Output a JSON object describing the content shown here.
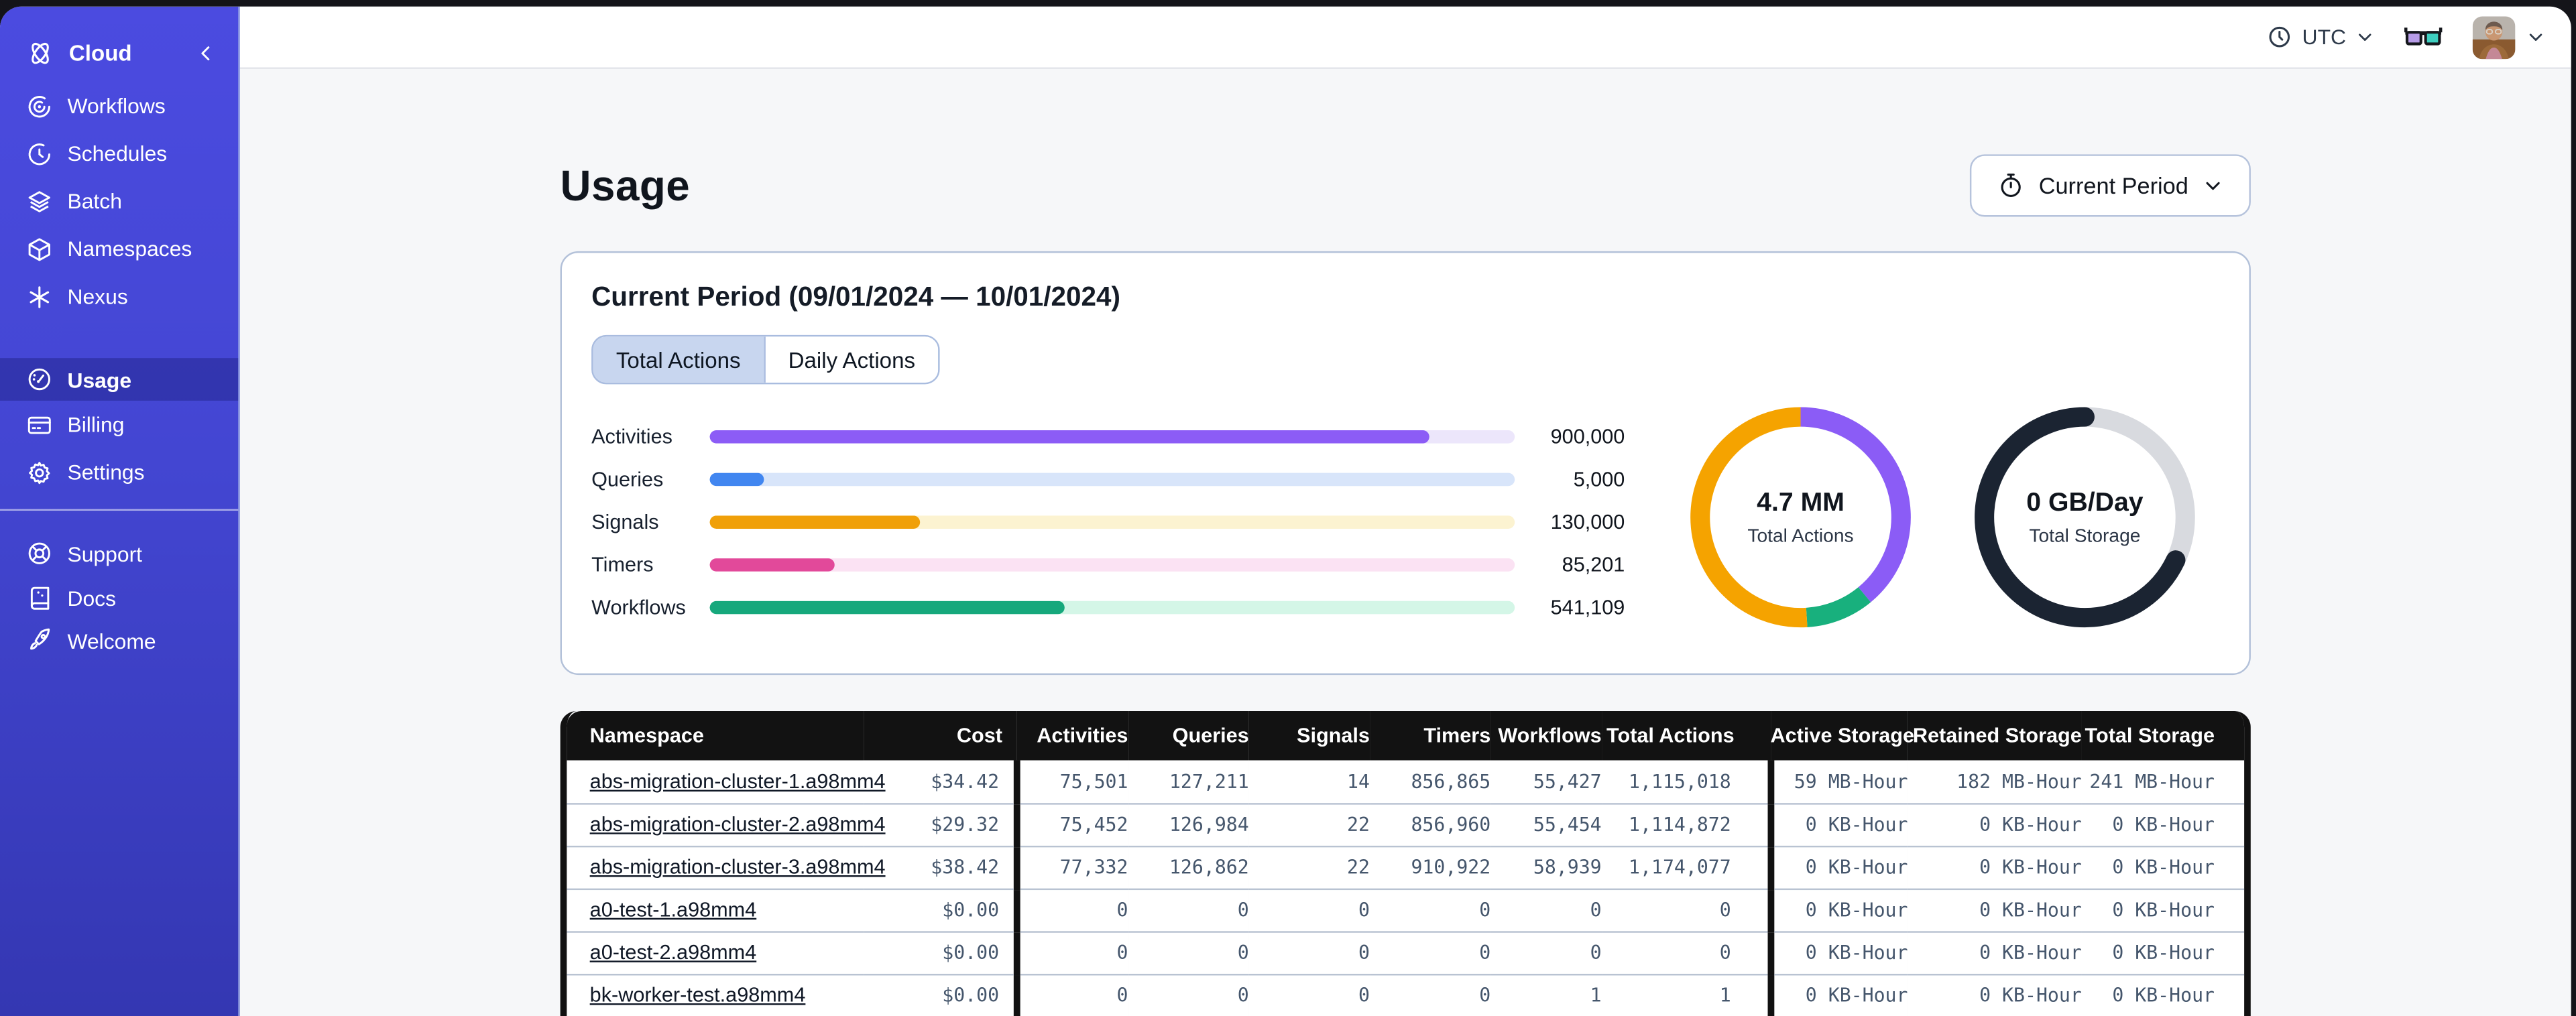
{
  "topbar": {
    "timezone": "UTC",
    "glasses_icon": "nerd-glasses-feedback",
    "avatar": "user-avatar-photo"
  },
  "sidebar": {
    "logo_label": "Cloud",
    "items": [
      {
        "label": "Workflows"
      },
      {
        "label": "Schedules"
      },
      {
        "label": "Batch"
      },
      {
        "label": "Namespaces"
      },
      {
        "label": "Nexus"
      }
    ],
    "account_items": [
      {
        "label": "Usage",
        "selected": true
      },
      {
        "label": "Billing",
        "selected": false
      },
      {
        "label": "Settings",
        "selected": false
      }
    ],
    "footer_items": [
      {
        "label": "Support"
      },
      {
        "label": "Docs"
      },
      {
        "label": "Welcome"
      }
    ]
  },
  "page": {
    "title": "Usage",
    "period_button_label": "Current Period"
  },
  "card": {
    "title": "Current Period (09/01/2024 — 10/01/2024)",
    "tabs": [
      {
        "label": "Total Actions",
        "selected": true
      },
      {
        "label": "Daily Actions",
        "selected": false
      }
    ]
  },
  "chart_data": [
    {
      "type": "bar",
      "orientation": "horizontal",
      "title": "Actions by type, current period",
      "categories": [
        "Activities",
        "Queries",
        "Signals",
        "Timers",
        "Workflows"
      ],
      "values": [
        900000,
        5000,
        130000,
        85201,
        541109
      ],
      "value_labels": [
        "900,000",
        "5,000",
        "130,000",
        "85,201",
        "541,109"
      ],
      "fill_pct": [
        89.4,
        6.7,
        26.1,
        15.5,
        44.1
      ],
      "bar_colors": [
        "#8C5CF6",
        "#4186F0",
        "#F0A009",
        "#E2499A",
        "#16A87C"
      ],
      "track_colors": [
        "#ECE6FB",
        "#D8E5FA",
        "#FCF3D1",
        "#FBE2F3",
        "#D4F6E7"
      ],
      "grid": false,
      "legend": "none"
    },
    {
      "type": "pie",
      "subtype": "donut",
      "center_value": "4.7 MM",
      "center_label": "Total Actions",
      "segments": [
        {
          "name": "activities",
          "color": "#8B5CF6",
          "pct": 39
        },
        {
          "name": "workflows",
          "color": "#18B07D",
          "pct": 10
        },
        {
          "name": "signals-other",
          "color": "#F5A300",
          "pct": 51
        }
      ]
    },
    {
      "type": "pie",
      "subtype": "donut",
      "center_value": "0 GB/Day",
      "center_label": "Total Storage",
      "segments": [
        {
          "name": "remaining",
          "color": "#D8DADF",
          "pct": 32
        },
        {
          "name": "used",
          "color": "#1B2432",
          "pct": 68,
          "cap": "round"
        }
      ]
    }
  ],
  "table": {
    "columns": [
      "Namespace",
      "Cost",
      "Activities",
      "Queries",
      "Signals",
      "Timers",
      "Workflows",
      "Total Actions",
      "Active Storage",
      "Retained Storage",
      "Total Storage"
    ],
    "rows": [
      [
        "abs-migration-cluster-1.a98mm4",
        "$34.42",
        "75,501",
        "127,211",
        "14",
        "856,865",
        "55,427",
        "1,115,018",
        "59 MB-Hour",
        "182 MB-Hour",
        "241 MB-Hour"
      ],
      [
        "abs-migration-cluster-2.a98mm4",
        "$29.32",
        "75,452",
        "126,984",
        "22",
        "856,960",
        "55,454",
        "1,114,872",
        "0 KB-Hour",
        "0 KB-Hour",
        "0 KB-Hour"
      ],
      [
        "abs-migration-cluster-3.a98mm4",
        "$38.42",
        "77,332",
        "126,862",
        "22",
        "910,922",
        "58,939",
        "1,174,077",
        "0 KB-Hour",
        "0 KB-Hour",
        "0 KB-Hour"
      ],
      [
        "a0-test-1.a98mm4",
        "$0.00",
        "0",
        "0",
        "0",
        "0",
        "0",
        "0",
        "0 KB-Hour",
        "0 KB-Hour",
        "0 KB-Hour"
      ],
      [
        "a0-test-2.a98mm4",
        "$0.00",
        "0",
        "0",
        "0",
        "0",
        "0",
        "0",
        "0 KB-Hour",
        "0 KB-Hour",
        "0 KB-Hour"
      ],
      [
        "bk-worker-test.a98mm4",
        "$0.00",
        "0",
        "0",
        "0",
        "0",
        "1",
        "1",
        "0 KB-Hour",
        "0 KB-Hour",
        "0 KB-Hour"
      ]
    ]
  }
}
